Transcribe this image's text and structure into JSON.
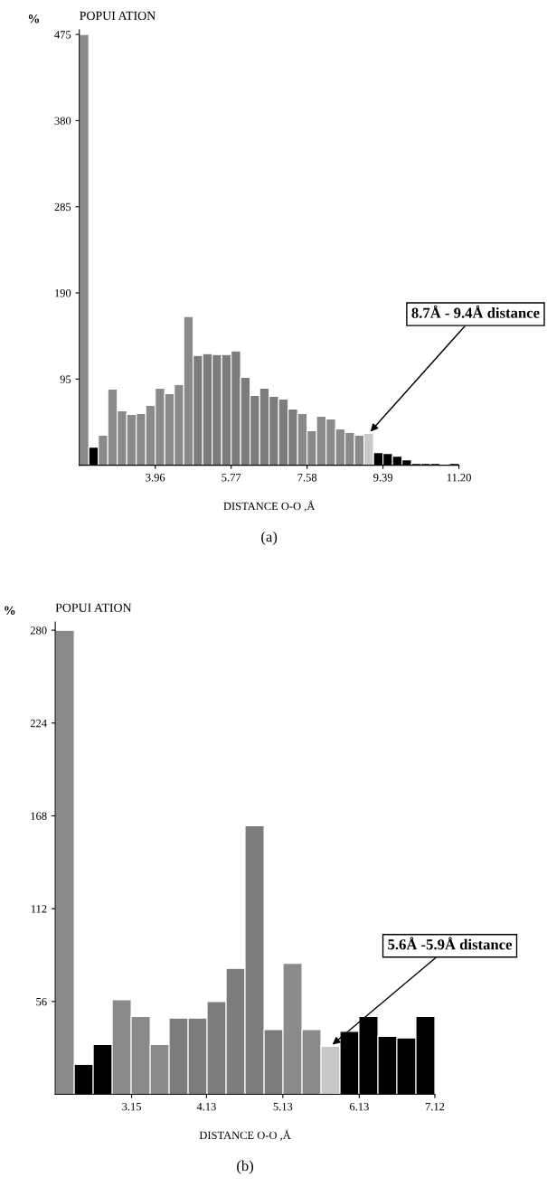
{
  "chart_data": [
    {
      "type": "histogram",
      "title": "POPUI ATION",
      "ylabel": "%",
      "xlabel": "DISTANCE O-O ,Å",
      "bins": [
        2.15,
        2.376,
        2.603,
        2.829,
        3.055,
        3.281,
        3.508,
        3.734,
        3.96,
        4.186,
        4.413,
        4.639,
        4.865,
        5.091,
        5.318,
        5.544,
        5.77,
        5.996,
        6.223,
        6.449,
        6.675,
        6.901,
        7.128,
        7.354,
        7.58,
        7.806,
        8.033,
        8.259,
        8.485,
        8.711,
        8.938,
        9.164,
        9.39,
        9.616,
        9.843,
        10.069,
        10.295,
        10.521,
        10.748,
        10.974,
        11.2
      ],
      "values": [
        475,
        20,
        33,
        84,
        60,
        56,
        57,
        66,
        85,
        79,
        89,
        164,
        121,
        123,
        122,
        122,
        126,
        97,
        77,
        85,
        76,
        73,
        62,
        57,
        38,
        54,
        51,
        40,
        36,
        33,
        35,
        14,
        13,
        10,
        6,
        2,
        2,
        2,
        0,
        2
      ],
      "colors": [
        "#8a8a8a",
        "#000000",
        "#8a8a8a",
        "#8a8a8a",
        "#8a8a8a",
        "#8a8a8a",
        "#8a8a8a",
        "#8a8a8a",
        "#8a8a8a",
        "#8a8a8a",
        "#8a8a8a",
        "#8a8a8a",
        "#7c7c7c",
        "#7c7c7c",
        "#7c7c7c",
        "#7c7c7c",
        "#7c7c7c",
        "#7c7c7c",
        "#7c7c7c",
        "#7c7c7c",
        "#7c7c7c",
        "#7c7c7c",
        "#7c7c7c",
        "#8a8a8a",
        "#8a8a8a",
        "#8a8a8a",
        "#8a8a8a",
        "#8a8a8a",
        "#8a8a8a",
        "#8a8a8a",
        "#c8c8c8",
        "#000000",
        "#000000",
        "#000000",
        "#000000",
        "#000000",
        "#000000",
        "#000000",
        "#ffffff",
        "#000000"
      ],
      "xlim": [
        2.15,
        11.2
      ],
      "xticks": [
        3.96,
        5.77,
        7.58,
        9.39,
        {
          "value": 11.2,
          "label": "11.20"
        }
      ],
      "ylim": [
        0,
        480
      ],
      "yticks": [
        95,
        190,
        285,
        380,
        475
      ],
      "annotations": [
        {
          "text": "8.7Å - 9.4Å distance",
          "x": 9.051,
          "y": 35
        },
        "(a)"
      ]
    },
    {
      "type": "histogram",
      "title": "POPUI ATION",
      "ylabel": "%",
      "xlabel": "DISTANCE O-O ,Å",
      "bins": [
        2.15,
        2.399,
        2.647,
        2.896,
        3.144,
        3.393,
        3.641,
        3.89,
        4.138,
        4.387,
        4.635,
        4.884,
        5.132,
        5.381,
        5.629,
        5.878,
        6.126,
        6.375,
        6.623,
        6.872,
        7.12
      ],
      "values": [
        280,
        18,
        30,
        57,
        47,
        30,
        46,
        46,
        56,
        76,
        162,
        39,
        79,
        39,
        29,
        38,
        47,
        35,
        34,
        47
      ],
      "colors": [
        "#8a8a8a",
        "#000000",
        "#000000",
        "#8a8a8a",
        "#8a8a8a",
        "#8a8a8a",
        "#7c7c7c",
        "#7c7c7c",
        "#7c7c7c",
        "#7c7c7c",
        "#7c7c7c",
        "#7c7c7c",
        "#8a8a8a",
        "#8a8a8a",
        "#c8c8c8",
        "#000000",
        "#000000",
        "#000000",
        "#000000",
        "#000000"
      ],
      "xlim": [
        2.15,
        7.12
      ],
      "xticks": [
        3.15,
        4.13,
        5.13,
        6.13,
        7.12
      ],
      "ylim": [
        0,
        285
      ],
      "yticks": [
        56,
        112,
        168,
        224,
        280
      ],
      "annotations": [
        {
          "text": "5.6Å -5.9Å distance",
          "x": 5.754,
          "y": 29
        },
        "(b)"
      ]
    }
  ]
}
